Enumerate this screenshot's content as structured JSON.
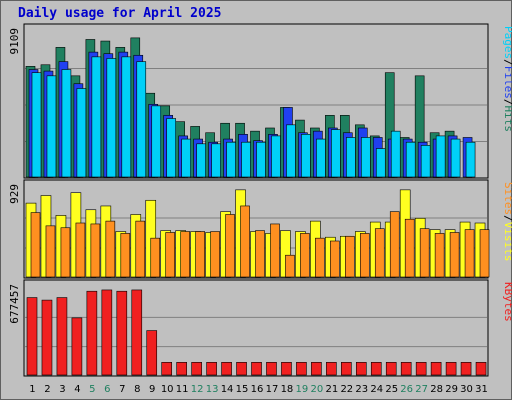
{
  "title": "Daily usage for April 2025",
  "colors": {
    "pages": "#00d0f8",
    "files": "#2040f0",
    "hits": "#208060",
    "visits": "#ffff20",
    "sites": "#ff9020",
    "kbytes": "#f02020",
    "weekend_tick": "#208060",
    "weekday_tick": "#000000"
  },
  "chart_data": [
    {
      "type": "bar",
      "title": "Daily usage for April 2025",
      "categories": [
        "1",
        "2",
        "3",
        "4",
        "5",
        "6",
        "7",
        "8",
        "9",
        "10",
        "11",
        "12",
        "13",
        "14",
        "15",
        "16",
        "17",
        "18",
        "19",
        "20",
        "21",
        "22",
        "23",
        "24",
        "25",
        "26",
        "27",
        "28",
        "29",
        "30",
        "31"
      ],
      "weekend_categories": [
        "5",
        "6",
        "12",
        "13",
        "19",
        "20",
        "26",
        "27"
      ],
      "ymax_label": "9109",
      "ylim": [
        0,
        9109
      ],
      "legend": [
        "Pages",
        "Files",
        "Hits"
      ],
      "legend_placement": "right",
      "series": [
        {
          "name": "Hits",
          "values": [
            7000,
            7100,
            8200,
            6400,
            8700,
            8600,
            8200,
            8800,
            5300,
            4500,
            3500,
            3200,
            2800,
            3400,
            3400,
            2900,
            3100,
            4400,
            3600,
            3100,
            3900,
            3900,
            3300,
            2600,
            6600,
            2500,
            6400,
            2800,
            2900,
            0,
            0
          ]
        },
        {
          "name": "Files",
          "values": [
            6800,
            6700,
            7300,
            5900,
            7900,
            7800,
            7900,
            7700,
            4600,
            3900,
            2600,
            2400,
            2200,
            2400,
            2700,
            2300,
            2700,
            4400,
            2800,
            2900,
            3100,
            2800,
            3100,
            2500,
            2400,
            2400,
            2200,
            2400,
            2600,
            2500,
            0
          ]
        },
        {
          "name": "Pages",
          "values": [
            6600,
            6400,
            6800,
            5600,
            7600,
            7500,
            7600,
            7300,
            4500,
            3700,
            2400,
            2100,
            2100,
            2200,
            2200,
            2200,
            2600,
            3300,
            2700,
            2400,
            3000,
            2500,
            2500,
            1800,
            2900,
            2200,
            2000,
            2600,
            2400,
            2200,
            0
          ]
        }
      ]
    },
    {
      "type": "bar",
      "categories": [
        "1",
        "2",
        "3",
        "4",
        "5",
        "6",
        "7",
        "8",
        "9",
        "10",
        "11",
        "12",
        "13",
        "14",
        "15",
        "16",
        "17",
        "18",
        "19",
        "20",
        "21",
        "22",
        "23",
        "24",
        "25",
        "26",
        "27",
        "28",
        "29",
        "30",
        "31"
      ],
      "ymax_label": "929",
      "ylim": [
        0,
        929
      ],
      "legend": [
        "Sites",
        "Visits"
      ],
      "legend_placement": "right",
      "series": [
        {
          "name": "Visits",
          "values": [
            780,
            860,
            650,
            890,
            710,
            750,
            480,
            660,
            810,
            490,
            490,
            480,
            470,
            690,
            920,
            480,
            460,
            490,
            480,
            590,
            420,
            430,
            480,
            580,
            580,
            920,
            620,
            500,
            500,
            580,
            570
          ]
        },
        {
          "name": "Sites",
          "values": [
            680,
            540,
            520,
            570,
            560,
            590,
            460,
            590,
            410,
            470,
            480,
            480,
            480,
            660,
            750,
            490,
            560,
            230,
            460,
            410,
            380,
            430,
            460,
            510,
            690,
            610,
            510,
            460,
            470,
            500,
            500
          ]
        }
      ]
    },
    {
      "type": "bar",
      "categories": [
        "1",
        "2",
        "3",
        "4",
        "5",
        "6",
        "7",
        "8",
        "9",
        "10",
        "11",
        "12",
        "13",
        "14",
        "15",
        "16",
        "17",
        "18",
        "19",
        "20",
        "21",
        "22",
        "23",
        "24",
        "25",
        "26",
        "27",
        "28",
        "29",
        "30",
        "31"
      ],
      "ymax_label": "677457",
      "ylim": [
        0,
        677457
      ],
      "legend": [
        "KBytes"
      ],
      "legend_placement": "right",
      "series": [
        {
          "name": "KBytes",
          "values": [
            610000,
            590000,
            610000,
            450000,
            660000,
            670000,
            660000,
            670000,
            350000,
            100000,
            100000,
            100000,
            100000,
            100000,
            100000,
            100000,
            100000,
            100000,
            100000,
            100000,
            100000,
            100000,
            100000,
            100000,
            100000,
            100000,
            100000,
            100000,
            100000,
            100000,
            100000
          ]
        }
      ]
    }
  ]
}
